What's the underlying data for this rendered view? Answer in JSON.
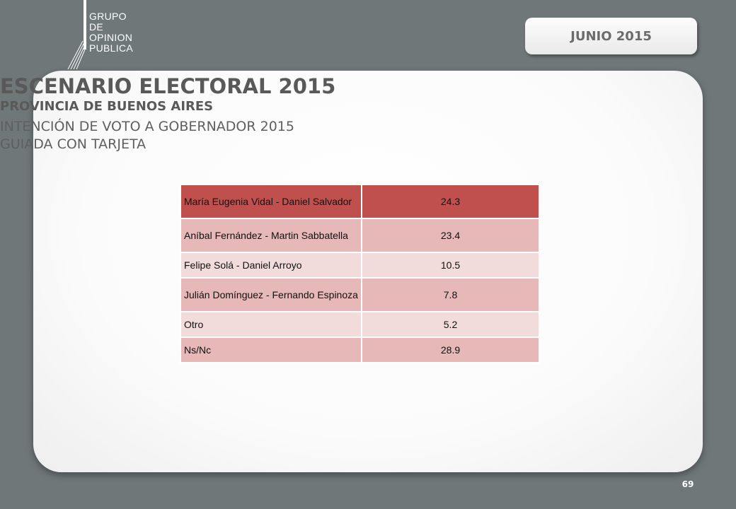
{
  "logo": {
    "lines": [
      "GRUPO",
      "DE",
      "OPINION",
      "PUBLICA"
    ]
  },
  "date_badge": "JUNIO 2015",
  "title": "ESCENARIO ELECTORAL 2015",
  "subtitle": "PROVINCIA DE BUENOS AIRES",
  "line1": "INTENCIÓN DE VOTO A GOBERNADOR 2015",
  "line2": "GUIADA CON TARJETA",
  "table": {
    "rows": [
      {
        "name": "María Eugenia Vidal - Daniel Salvador",
        "value": "24.3"
      },
      {
        "name": "Aníbal Fernández - Martin Sabbatella",
        "value": "23.4"
      },
      {
        "name": "Felipe Solá - Daniel Arroyo",
        "value": "10.5"
      },
      {
        "name": "Julián Domínguez - Fernando Espinoza",
        "value": "7.8"
      },
      {
        "name": "Otro",
        "value": "5.2"
      },
      {
        "name": "Ns/Nc",
        "value": "28.9"
      }
    ]
  },
  "colors": {
    "background": "#6f7778",
    "header_row": "#c0504d",
    "dark_row": "#e6b8b7",
    "light_row": "#f2dcdb"
  },
  "page_number": "69"
}
